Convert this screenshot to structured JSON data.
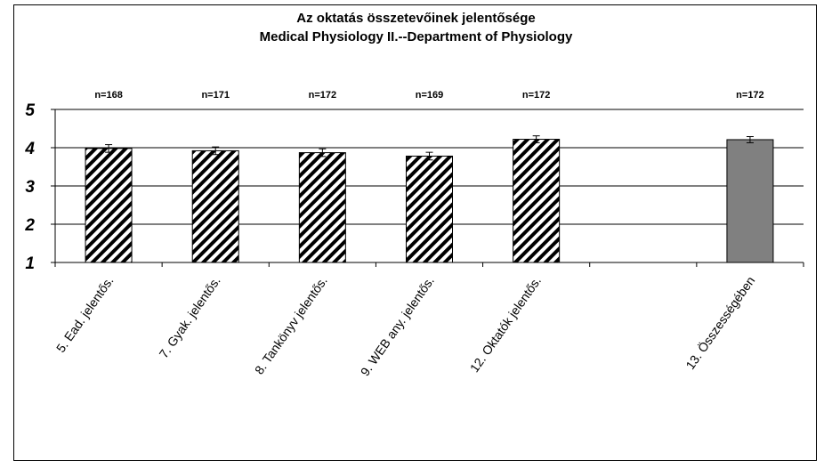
{
  "chart_data": {
    "type": "bar",
    "title": "Az oktatás összetevőinek jelentősége",
    "subtitle": "Medical Physiology II.--Department of Physiology",
    "categories": [
      "5. Ead. jelentős.",
      "7. Gyak. jelentős.",
      "8. Tankönyv jelentős.",
      "9. WEB any. jelentős.",
      "12. Oktatók jelentős.",
      "",
      "13. Összességében"
    ],
    "values": [
      3.98,
      3.92,
      3.87,
      3.78,
      4.22,
      null,
      4.21
    ],
    "errors": [
      0.1,
      0.1,
      0.1,
      0.1,
      0.09,
      null,
      0.08
    ],
    "n_labels": [
      "n=168",
      "n=171",
      "n=172",
      "n=169",
      "n=172",
      "",
      "n=172"
    ],
    "fills": [
      "hatched",
      "hatched",
      "hatched",
      "hatched",
      "hatched",
      null,
      "gray"
    ],
    "colors": {
      "bar_gray": "#808080",
      "hatch": "#000000",
      "grid": "#000000"
    },
    "yticks": [
      "1",
      "2",
      "3",
      "4",
      "5"
    ],
    "ylim": [
      1,
      5
    ],
    "grid": true
  }
}
